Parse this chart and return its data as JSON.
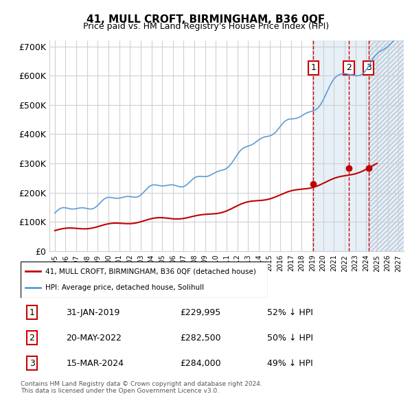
{
  "title": "41, MULL CROFT, BIRMINGHAM, B36 0QF",
  "subtitle": "Price paid vs. HM Land Registry's House Price Index (HPI)",
  "xlabel": "",
  "ylabel": "",
  "ylim": [
    0,
    720000
  ],
  "yticks": [
    0,
    100000,
    200000,
    300000,
    400000,
    500000,
    600000,
    700000
  ],
  "ytick_labels": [
    "£0",
    "£100K",
    "£200K",
    "£300K",
    "£400K",
    "£500K",
    "£600K",
    "£700K"
  ],
  "xlim_start": 1994.5,
  "xlim_end": 2027.5,
  "hpi_color": "#5b9bd5",
  "price_color": "#c00000",
  "sale_marker_color": "#c00000",
  "transaction_dates": [
    2019.08,
    2022.38,
    2024.21
  ],
  "transaction_prices": [
    229995,
    282500,
    284000
  ],
  "transaction_labels": [
    "1",
    "2",
    "3"
  ],
  "legend_property": "41, MULL CROFT, BIRMINGHAM, B36 0QF (detached house)",
  "legend_hpi": "HPI: Average price, detached house, Solihull",
  "table_rows": [
    [
      "1",
      "31-JAN-2019",
      "£229,995",
      "52% ↓ HPI"
    ],
    [
      "2",
      "20-MAY-2022",
      "£282,500",
      "50% ↓ HPI"
    ],
    [
      "3",
      "15-MAR-2024",
      "£284,000",
      "49% ↓ HPI"
    ]
  ],
  "footnote": "Contains HM Land Registry data © Crown copyright and database right 2024.\nThis data is licensed under the Open Government Licence v3.0.",
  "background_color": "#ffffff",
  "grid_color": "#d0d0d0",
  "hatch_color": "#d0d8e8"
}
